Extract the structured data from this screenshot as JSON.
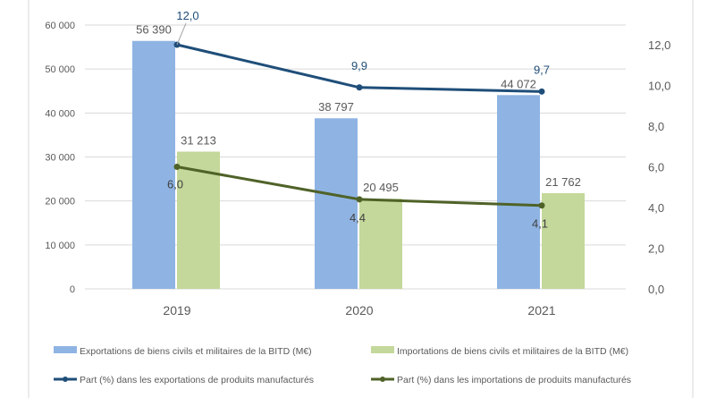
{
  "chart_data": {
    "type": "bar",
    "categories": [
      "2019",
      "2020",
      "2021"
    ],
    "series": [
      {
        "name": "Exportations de biens civils et militaires de la BITD (M€)",
        "kind": "bar",
        "axis": "left",
        "color": "#8FB4E3",
        "values": [
          56390,
          38797,
          44072
        ],
        "labels": [
          "56 390",
          "38 797",
          "44 072"
        ]
      },
      {
        "name": "Importations de biens civils et militaires de la BITD (M€)",
        "kind": "bar",
        "axis": "left",
        "color": "#C4D89B",
        "values": [
          31213,
          20495,
          21762
        ],
        "labels": [
          "31 213",
          "20 495",
          "21 762"
        ]
      },
      {
        "name": "Part (%) dans les exportations de produits manufacturés",
        "kind": "line",
        "axis": "right",
        "color": "#1F4E79",
        "values": [
          12.0,
          9.9,
          9.7
        ],
        "labels": [
          "12,0",
          "9,9",
          "9,7"
        ]
      },
      {
        "name": "Part (%) dans les importations de produits manufacturés",
        "kind": "line",
        "axis": "right",
        "color": "#4F6228",
        "values": [
          6.0,
          4.4,
          4.1
        ],
        "labels": [
          "6,0",
          "4,4",
          "4,1"
        ]
      }
    ],
    "left_axis": {
      "ylim": [
        0,
        60000
      ],
      "ticks": [
        "0",
        "10 000",
        "20 000",
        "30 000",
        "40 000",
        "50 000",
        "60 000"
      ]
    },
    "right_axis": {
      "ylim": [
        0,
        12
      ],
      "ticks": [
        "0,0",
        "2,0",
        "4,0",
        "6,0",
        "8,0",
        "10,0",
        "12,0"
      ]
    },
    "grid": true,
    "legend": "bottom"
  }
}
